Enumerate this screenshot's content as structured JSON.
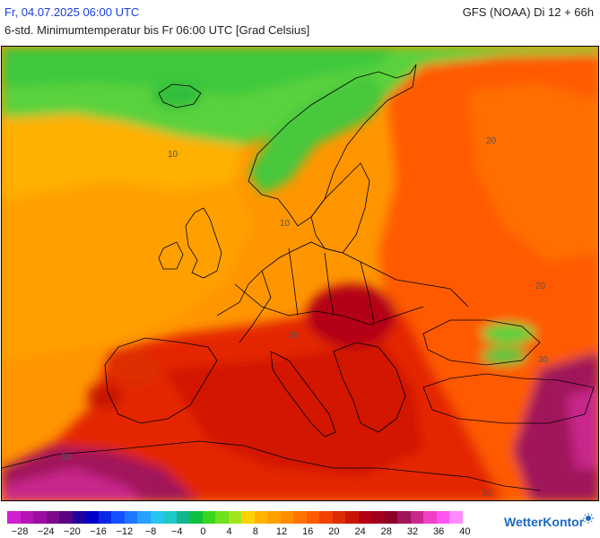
{
  "header": {
    "date": "Fr, 04.07.2025 06:00 UTC",
    "model": "GFS (NOAA) Di 12 + 66h",
    "subtitle": "6-std. Minimumtemperatur bis Fr 06:00 UTC [Grad Celsius]"
  },
  "map": {
    "region": "Europe",
    "contour_labels": [
      "10",
      "10",
      "20",
      "20",
      "20",
      "30",
      "30",
      "30"
    ]
  },
  "legend": {
    "colors": [
      "#d01fd0",
      "#b414b4",
      "#9a0fa0",
      "#7c0a8a",
      "#5a0080",
      "#2200a0",
      "#0000c8",
      "#0a28e6",
      "#1450ff",
      "#1e78ff",
      "#28a0ff",
      "#28c4f0",
      "#1ec8c8",
      "#14b48c",
      "#10c040",
      "#3ad51e",
      "#6fe11e",
      "#a0e61e",
      "#ffd200",
      "#ffb400",
      "#ffa000",
      "#ff8c00",
      "#ff7300",
      "#ff5a00",
      "#f04100",
      "#dc2d00",
      "#c81400",
      "#b40014",
      "#a0001e",
      "#8c0028",
      "#a0145a",
      "#c8288c",
      "#f040c8",
      "#ff55f0",
      "#ff8cff"
    ],
    "ticks": [
      "−28",
      "−24",
      "−20",
      "−16",
      "−12",
      "−8",
      "−4",
      "0",
      "4",
      "8",
      "12",
      "16",
      "20",
      "24",
      "28",
      "32",
      "36",
      "40"
    ]
  },
  "brand": {
    "name": "WetterKontor",
    "icon": "wetterkontor-logo-icon"
  }
}
